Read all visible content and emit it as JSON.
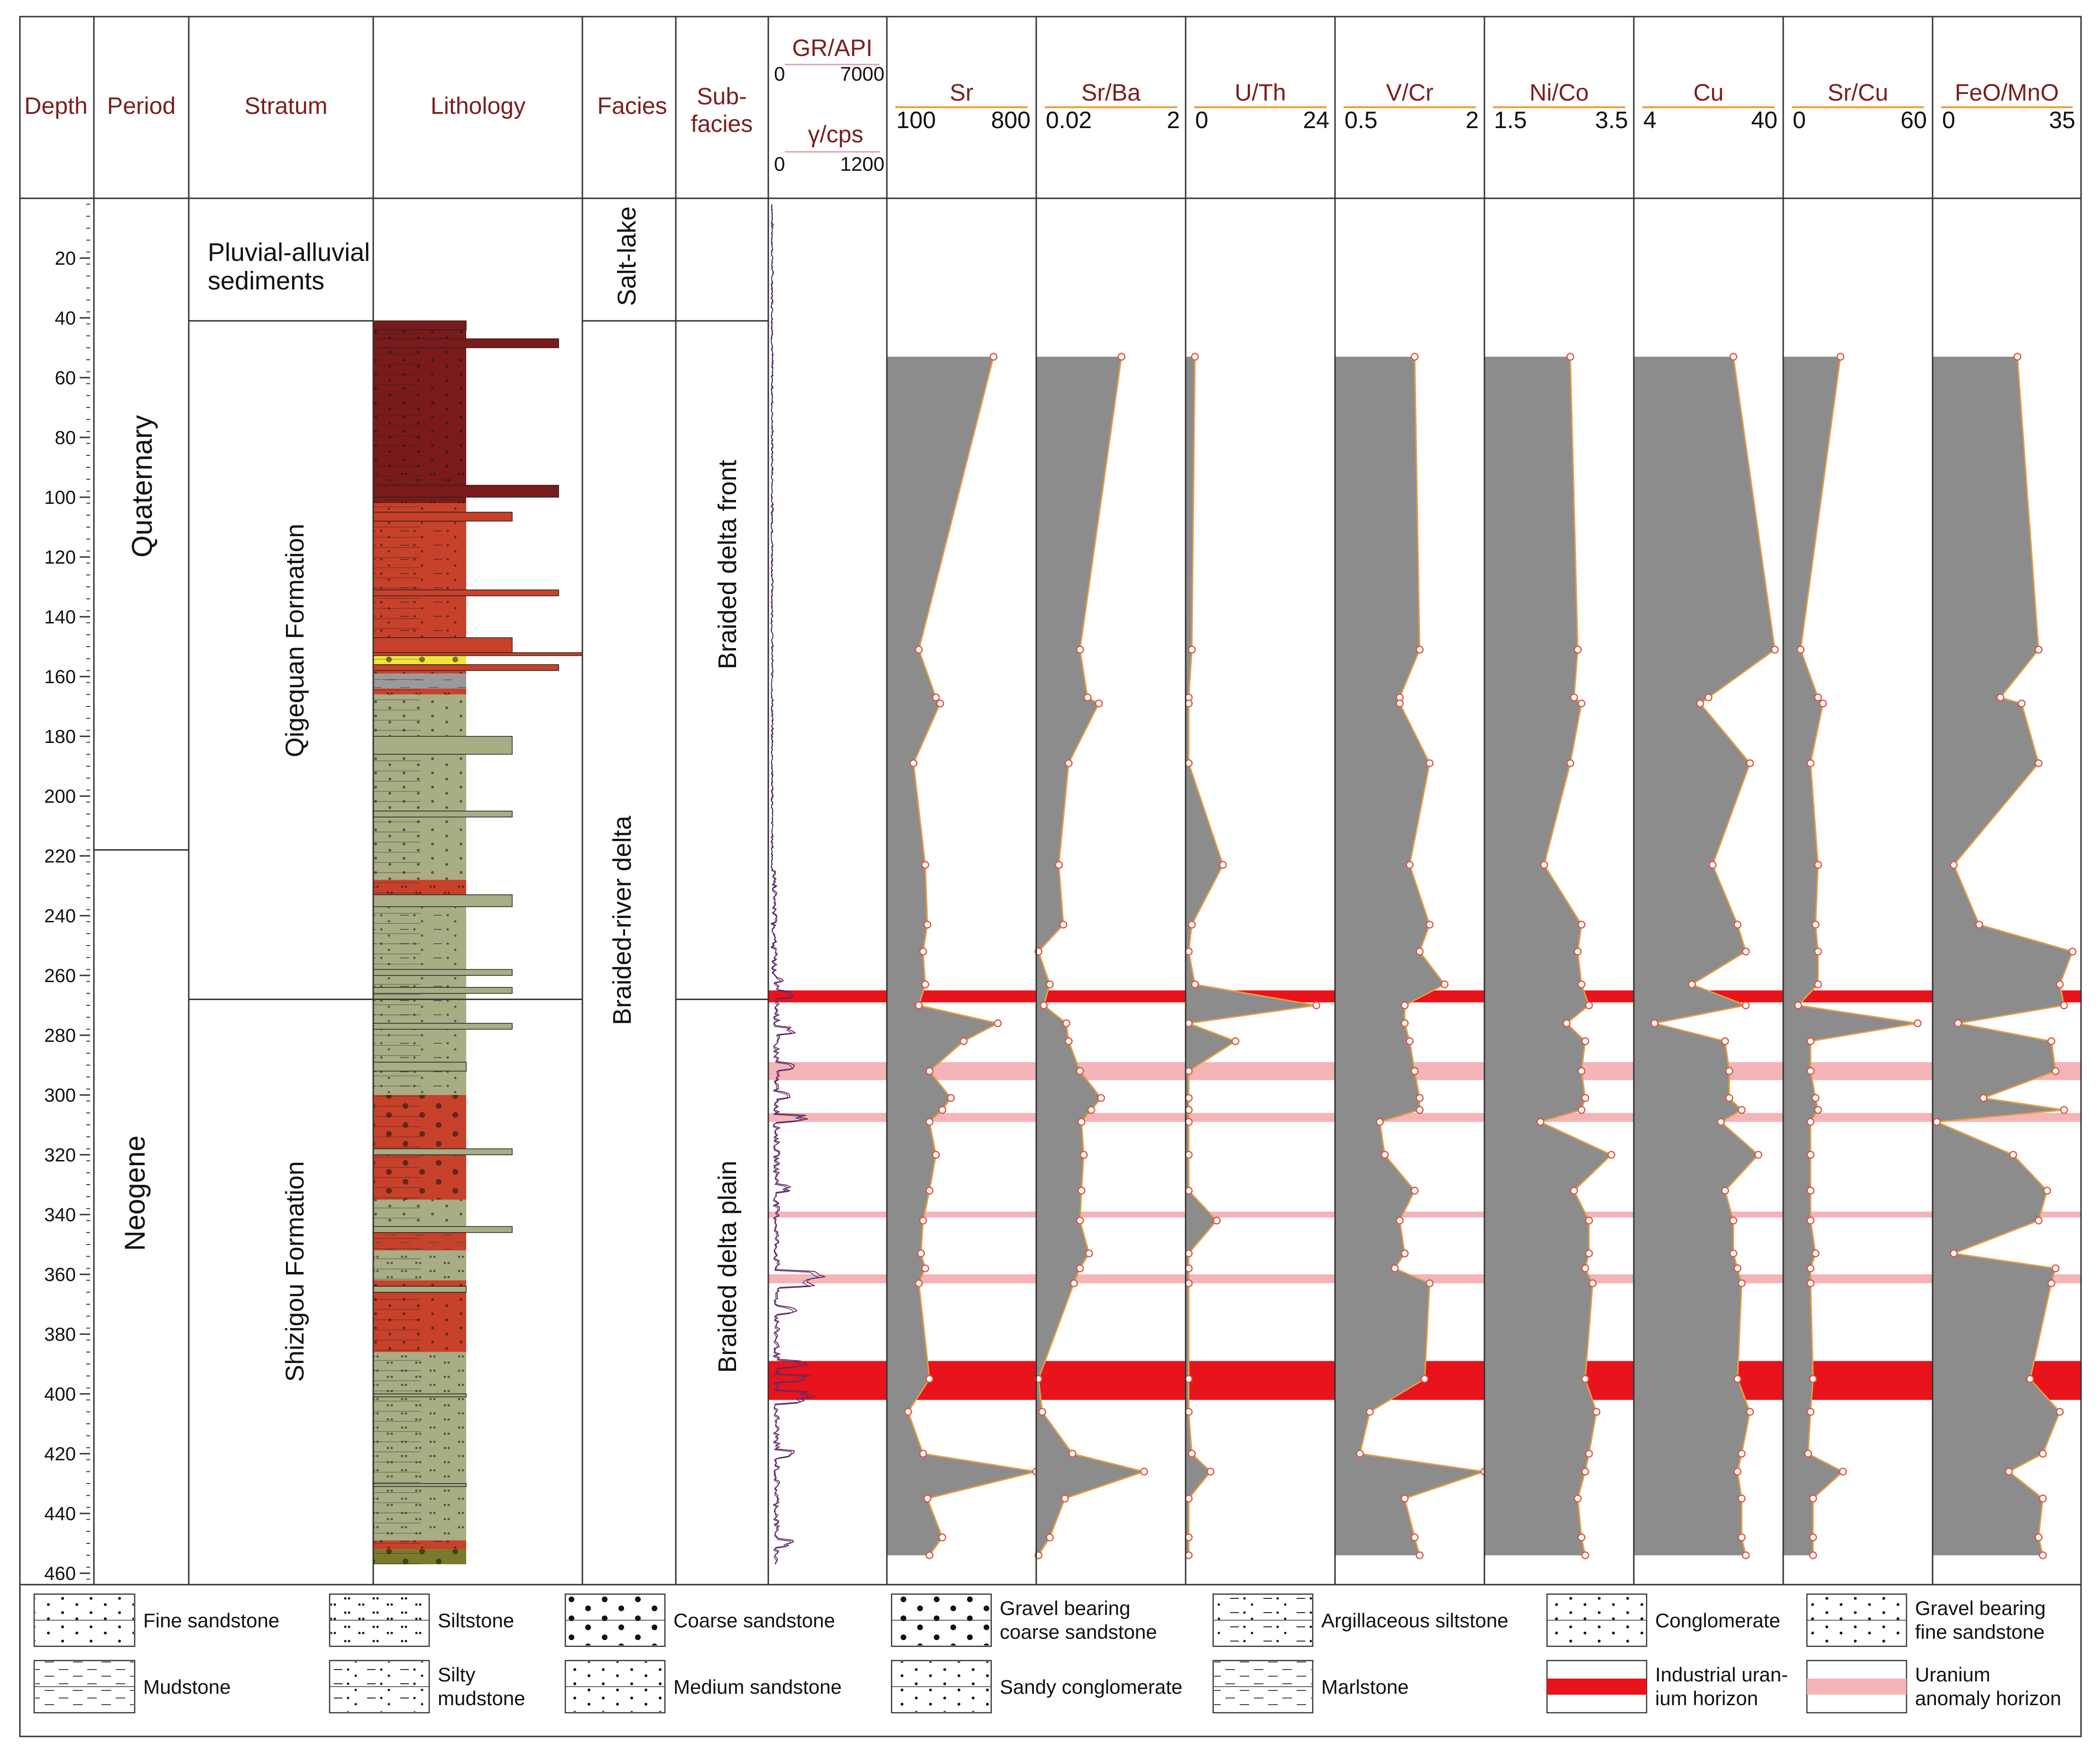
{
  "headers": {
    "depth": "Depth",
    "period": "Period",
    "stratum": "Stratum",
    "lithology": "Lithology",
    "facies": "Facies",
    "subfacies_1": "Sub-",
    "subfacies_2": "facies",
    "gr_label": "GR/API",
    "gr_min": "0",
    "gr_max": "7000",
    "gamma_label": "γ/cps",
    "gamma_min": "0",
    "gamma_max": "1200"
  },
  "periods": [
    "Quaternary",
    "Neogene"
  ],
  "strata": [
    "Pluvial-alluvial",
    "sediments",
    "Qigequan Formation",
    "Shizigou Formation"
  ],
  "facies": [
    "Salt-lake",
    "Braided-river delta"
  ],
  "subfacies": [
    "Braided delta front",
    "Braided delta plain"
  ],
  "colors": {
    "frame": "#333333",
    "fill_gray": "#8c8c8c",
    "curve_orange": "#e8a040",
    "point_edge": "#e0503a",
    "uranium_industrial": "#e8131b",
    "uranium_anomaly": "#f4b4b8",
    "header_red": "#7a1f1f",
    "lith_darkred": "#7a1a1a",
    "lith_red": "#c8412a",
    "lith_olive": "#a8ad84",
    "lith_olive_dark": "#7a7a2a",
    "lith_yellow": "#f0e63a",
    "lith_gray": "#9a9a9a"
  },
  "legend": [
    {
      "label": "Fine sandstone",
      "pattern": "fine-sandstone"
    },
    {
      "label": "Siltstone",
      "pattern": "siltstone"
    },
    {
      "label": "Coarse sandstone",
      "pattern": "coarse-sandstone"
    },
    {
      "label": "Gravel bearing",
      "label2": "coarse sandstone",
      "pattern": "gravel-coarse"
    },
    {
      "label": "Argillaceous siltstone",
      "pattern": "argillaceous-siltstone"
    },
    {
      "label": "Conglomerate",
      "pattern": "conglomerate"
    },
    {
      "label": "Gravel bearing",
      "label2": "fine sandstone",
      "pattern": "gravel-fine"
    },
    {
      "label": "Mudstone",
      "pattern": "mudstone"
    },
    {
      "label": "Silty",
      "label2": "mudstone",
      "pattern": "silty-mudstone"
    },
    {
      "label": "Medium sandstone",
      "pattern": "medium-sandstone"
    },
    {
      "label": "Sandy conglomerate",
      "pattern": "sandy-conglomerate"
    },
    {
      "label": "Marlstone",
      "pattern": "marlstone"
    },
    {
      "label": "Industrial uran-",
      "label2": "ium horizon",
      "pattern": "industrial-uranium"
    },
    {
      "label": "Uranium",
      "label2": "anomaly horizon",
      "pattern": "uranium-anomaly"
    }
  ],
  "chart_data": {
    "type": "line",
    "title": "",
    "ylabel": "Depth",
    "ylim": [
      0,
      465
    ],
    "depth_ticks": [
      20,
      40,
      60,
      80,
      100,
      120,
      140,
      160,
      180,
      200,
      220,
      240,
      260,
      280,
      300,
      320,
      340,
      360,
      380,
      400,
      420,
      440,
      460
    ],
    "period_boundary_depth": 218,
    "stratum_boundaries": [
      41,
      268
    ],
    "uranium_industrial": [
      [
        265,
        269
      ],
      [
        389,
        402
      ]
    ],
    "uranium_anomaly": [
      [
        289,
        295
      ],
      [
        306,
        309
      ],
      [
        339,
        341
      ],
      [
        360,
        363
      ]
    ],
    "lithology": [
      {
        "top": 41,
        "bottom": 90,
        "color": "darkred"
      },
      {
        "top": 90,
        "bottom": 102,
        "color": "darkred"
      },
      {
        "top": 102,
        "bottom": 152,
        "color": "red"
      },
      {
        "top": 152,
        "bottom": 156,
        "color": "yellow"
      },
      {
        "top": 156,
        "bottom": 159,
        "color": "red"
      },
      {
        "top": 159,
        "bottom": 164,
        "color": "gray"
      },
      {
        "top": 164,
        "bottom": 166,
        "color": "red"
      },
      {
        "top": 166,
        "bottom": 228,
        "color": "olive"
      },
      {
        "top": 228,
        "bottom": 233,
        "color": "red"
      },
      {
        "top": 233,
        "bottom": 300,
        "color": "olive"
      },
      {
        "top": 300,
        "bottom": 335,
        "color": "red"
      },
      {
        "top": 335,
        "bottom": 345,
        "color": "olive"
      },
      {
        "top": 345,
        "bottom": 352,
        "color": "red"
      },
      {
        "top": 352,
        "bottom": 362,
        "color": "olive"
      },
      {
        "top": 362,
        "bottom": 386,
        "color": "red"
      },
      {
        "top": 386,
        "bottom": 449,
        "color": "olive"
      },
      {
        "top": 449,
        "bottom": 452,
        "color": "red"
      },
      {
        "top": 452,
        "bottom": 457,
        "color": "olive_dark"
      }
    ],
    "depths": [
      53,
      151,
      167,
      169,
      189,
      223,
      243,
      252,
      263,
      270,
      276,
      282,
      292,
      301,
      305,
      309,
      320,
      332,
      342,
      353,
      358,
      363,
      395,
      406,
      420,
      426,
      435,
      448,
      454
    ],
    "series": [
      {
        "name": "Sr",
        "min_label": "100",
        "max_label": "800",
        "xlim": [
          100,
          800
        ],
        "values": [
          600,
          250,
          330,
          350,
          225,
          280,
          290,
          270,
          280,
          250,
          620,
          460,
          300,
          400,
          360,
          300,
          330,
          300,
          270,
          260,
          280,
          250,
          300,
          200,
          270,
          800,
          290,
          360,
          300
        ]
      },
      {
        "name": "Sr/Ba",
        "min_label": "0.02",
        "max_label": "2",
        "xlim": [
          0.02,
          2
        ],
        "values": [
          1.15,
          0.6,
          0.7,
          0.85,
          0.45,
          0.32,
          0.38,
          0.05,
          0.2,
          0.12,
          0.42,
          0.45,
          0.6,
          0.88,
          0.75,
          0.62,
          0.65,
          0.62,
          0.6,
          0.72,
          0.6,
          0.52,
          0.05,
          0.1,
          0.5,
          1.45,
          0.4,
          0.2,
          0.05
        ]
      },
      {
        "name": "U/Th",
        "min_label": "0",
        "max_label": "24",
        "xlim": [
          0,
          24
        ],
        "values": [
          1.5,
          1,
          0.5,
          0.5,
          0.5,
          6,
          1,
          0.5,
          1.5,
          21,
          0.5,
          8,
          0.5,
          0.5,
          0.5,
          0.5,
          0.5,
          0.5,
          5,
          0.5,
          0.5,
          0.5,
          0.5,
          0.5,
          1,
          4,
          0.5,
          0.5,
          0.5
        ]
      },
      {
        "name": "V/Cr",
        "min_label": "0.5",
        "max_label": "2",
        "xlim": [
          0.5,
          2
        ],
        "values": [
          1.3,
          1.35,
          1.15,
          1.15,
          1.45,
          1.25,
          1.45,
          1.35,
          1.6,
          1.2,
          1.2,
          1.25,
          1.3,
          1.35,
          1.35,
          0.95,
          1.0,
          1.3,
          1.15,
          1.2,
          1.1,
          1.45,
          1.4,
          0.85,
          0.75,
          2.0,
          1.2,
          1.3,
          1.35
        ]
      },
      {
        "name": "Ni/Co",
        "min_label": "1.5",
        "max_label": "3.5",
        "xlim": [
          1.5,
          3.5
        ],
        "values": [
          2.65,
          2.75,
          2.7,
          2.8,
          2.65,
          2.3,
          2.8,
          2.75,
          2.8,
          2.9,
          2.6,
          2.85,
          2.8,
          2.85,
          2.8,
          2.25,
          3.2,
          2.7,
          2.9,
          2.9,
          2.85,
          2.95,
          2.85,
          3.0,
          2.9,
          2.85,
          2.75,
          2.8,
          2.85
        ]
      },
      {
        "name": "Cu",
        "min_label": "4",
        "max_label": "40",
        "xlim": [
          4,
          40
        ],
        "values": [
          28,
          38,
          22,
          20,
          32,
          23,
          29,
          31,
          18,
          31,
          9,
          26,
          27,
          27,
          30,
          25,
          34,
          26,
          28,
          28,
          29,
          30,
          29,
          32,
          30,
          29,
          30,
          30,
          31
        ]
      },
      {
        "name": "Sr/Cu",
        "min_label": "0",
        "max_label": "60",
        "xlim": [
          0,
          60
        ],
        "values": [
          23,
          7,
          14,
          16,
          11,
          14,
          13,
          14,
          14,
          6,
          54,
          11,
          11,
          13,
          14,
          11,
          11,
          11,
          11,
          13,
          11,
          11,
          12,
          11,
          10,
          24,
          12,
          12,
          12
        ]
      },
      {
        "name": "FeO/MnO",
        "min_label": "0",
        "max_label": "35",
        "xlim": [
          0,
          35
        ],
        "values": [
          20,
          25,
          16,
          21,
          25,
          5,
          11,
          33,
          30,
          31,
          6,
          28,
          29,
          12,
          31,
          1,
          19,
          27,
          25,
          5,
          29,
          28,
          23,
          30,
          26,
          18,
          26,
          25,
          26
        ]
      }
    ]
  }
}
